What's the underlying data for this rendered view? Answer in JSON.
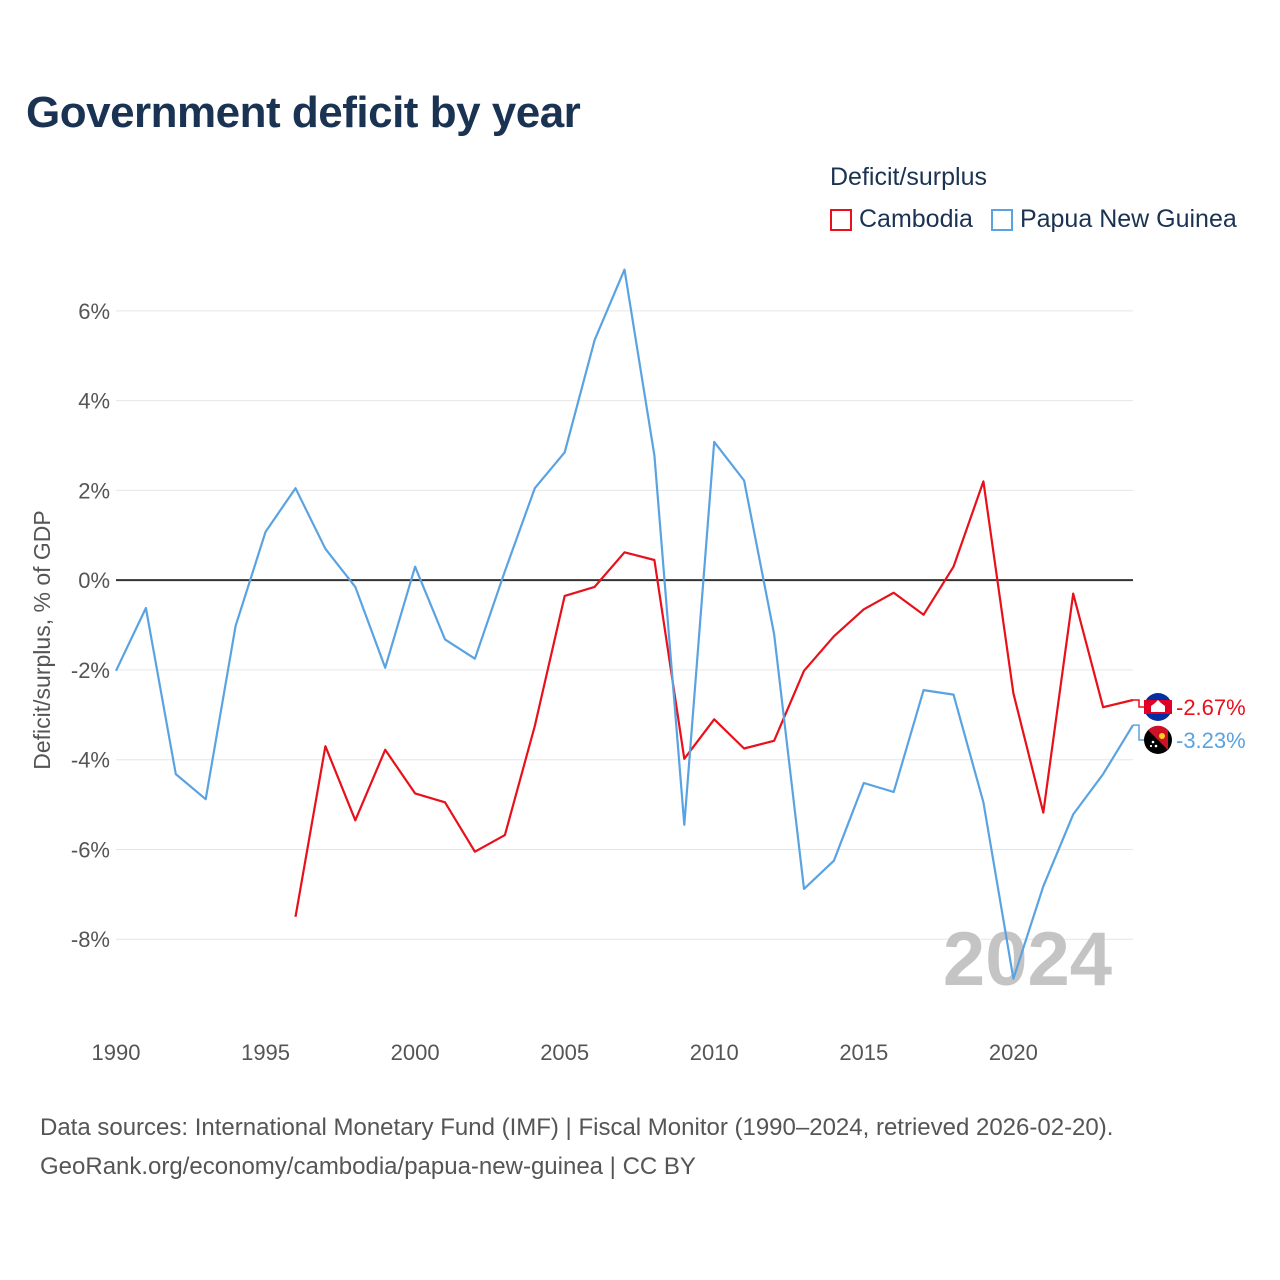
{
  "title": "Government deficit by year",
  "legend": {
    "title": "Deficit/surplus",
    "items": [
      {
        "label": "Cambodia",
        "color": "#e8101a"
      },
      {
        "label": "Papua New Guinea",
        "color": "#5aa3e2"
      }
    ]
  },
  "footer": {
    "line1": "Data sources: International Monetary Fund (IMF) | Fiscal Monitor (1990–2024, retrieved 2026-02-20).",
    "line2": "GeoRank.org/economy/cambodia/papua-new-guinea | CC BY"
  },
  "chart_data": {
    "type": "line",
    "title": "Government deficit by year",
    "xlabel": "",
    "ylabel": "Deficit/surplus, % of GDP",
    "xlim": [
      1990,
      2024
    ],
    "ylim": [
      -9.8,
      7
    ],
    "x_ticks": [
      1990,
      1995,
      2000,
      2005,
      2010,
      2015,
      2020
    ],
    "y_ticks": [
      6,
      4,
      2,
      0,
      -2,
      -4,
      -6,
      -8
    ],
    "y_tick_labels": [
      "6%",
      "4%",
      "2%",
      "0%",
      "-2%",
      "-4%",
      "-6%",
      "-8%"
    ],
    "year_watermark": "2024",
    "series": [
      {
        "name": "Cambodia",
        "color": "#e8101a",
        "end_label": "-2.67%",
        "flag_icon": "cambodia-flag-icon",
        "points": [
          [
            1996,
            -7.5
          ],
          [
            1997,
            -3.7
          ],
          [
            1998,
            -5.35
          ],
          [
            1999,
            -3.78
          ],
          [
            2000,
            -4.75
          ],
          [
            2001,
            -4.95
          ],
          [
            2002,
            -6.05
          ],
          [
            2003,
            -5.68
          ],
          [
            2004,
            -3.25
          ],
          [
            2005,
            -0.35
          ],
          [
            2006,
            -0.15
          ],
          [
            2007,
            0.62
          ],
          [
            2008,
            0.45
          ],
          [
            2009,
            -3.98
          ],
          [
            2010,
            -3.1
          ],
          [
            2011,
            -3.75
          ],
          [
            2012,
            -3.58
          ],
          [
            2013,
            -2.02
          ],
          [
            2014,
            -1.25
          ],
          [
            2015,
            -0.65
          ],
          [
            2016,
            -0.28
          ],
          [
            2017,
            -0.77
          ],
          [
            2018,
            0.3
          ],
          [
            2019,
            2.2
          ],
          [
            2020,
            -2.52
          ],
          [
            2021,
            -5.18
          ],
          [
            2022,
            -0.3
          ],
          [
            2023,
            -2.83
          ],
          [
            2024,
            -2.67
          ]
        ]
      },
      {
        "name": "Papua New Guinea",
        "color": "#5aa3e2",
        "end_label": "-3.23%",
        "flag_icon": "png-flag-icon",
        "points": [
          [
            1990,
            -2.02
          ],
          [
            1991,
            -0.62
          ],
          [
            1992,
            -4.32
          ],
          [
            1993,
            -4.88
          ],
          [
            1994,
            -1.02
          ],
          [
            1995,
            1.08
          ],
          [
            1996,
            2.05
          ],
          [
            1997,
            0.7
          ],
          [
            1998,
            -0.15
          ],
          [
            1999,
            -1.95
          ],
          [
            2000,
            0.3
          ],
          [
            2001,
            -1.32
          ],
          [
            2002,
            -1.75
          ],
          [
            2003,
            0.2
          ],
          [
            2004,
            2.05
          ],
          [
            2005,
            2.85
          ],
          [
            2006,
            5.35
          ],
          [
            2007,
            6.92
          ],
          [
            2008,
            2.78
          ],
          [
            2009,
            -5.45
          ],
          [
            2010,
            3.08
          ],
          [
            2011,
            2.22
          ],
          [
            2012,
            -1.2
          ],
          [
            2013,
            -6.88
          ],
          [
            2014,
            -6.25
          ],
          [
            2015,
            -4.52
          ],
          [
            2016,
            -4.72
          ],
          [
            2017,
            -2.45
          ],
          [
            2018,
            -2.55
          ],
          [
            2019,
            -4.95
          ],
          [
            2020,
            -8.88
          ],
          [
            2021,
            -6.82
          ],
          [
            2022,
            -5.22
          ],
          [
            2023,
            -4.32
          ],
          [
            2024,
            -3.23
          ]
        ]
      }
    ]
  }
}
